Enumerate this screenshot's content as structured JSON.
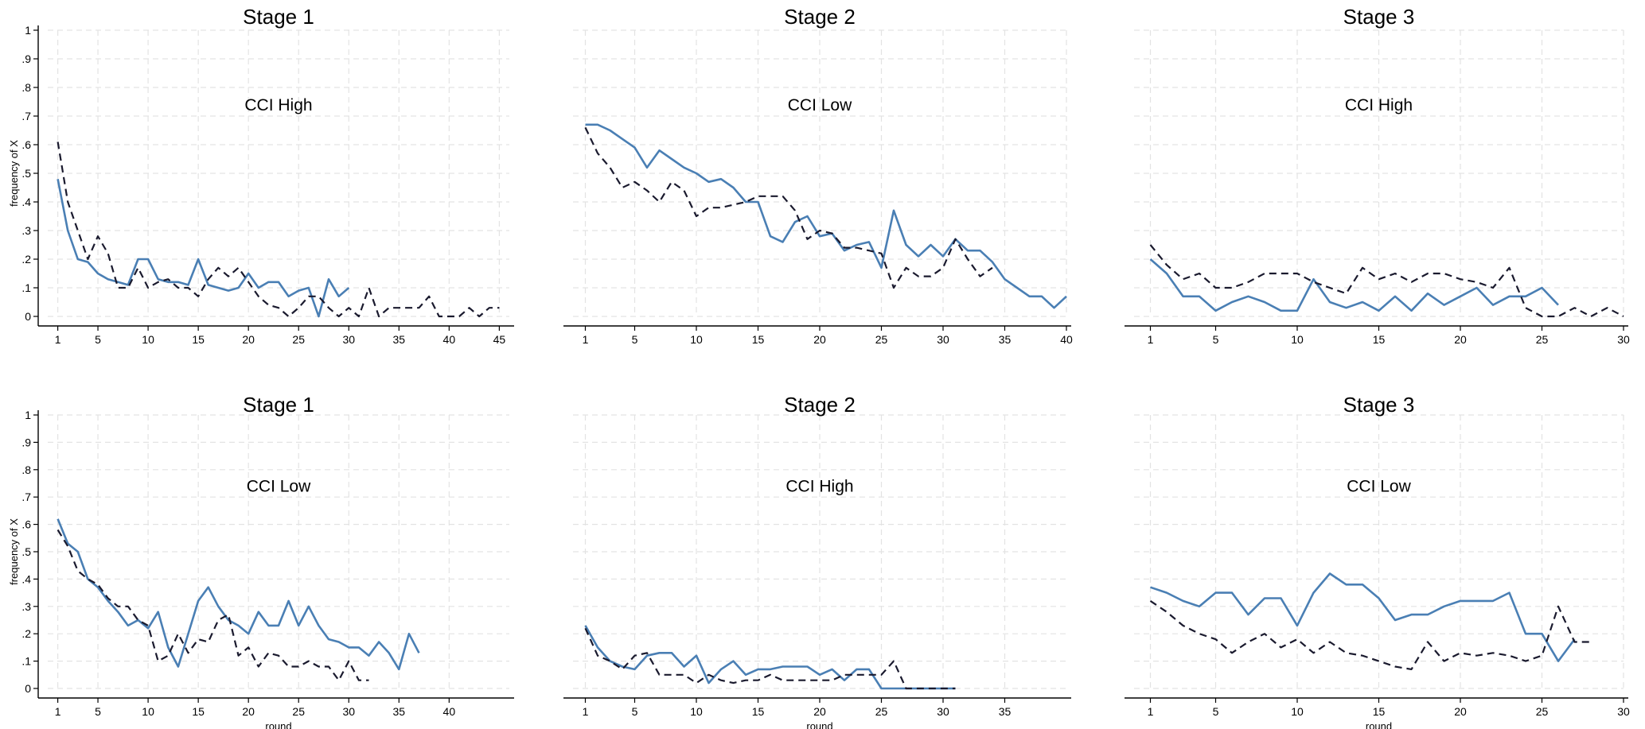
{
  "colors": {
    "solid_series": "#4a7fb4",
    "dashed_series": "#1a1a2e",
    "grid": "#e3e3e3"
  },
  "chart_data": [
    {
      "type": "line",
      "title": "Stage 1",
      "annotation": "CCI High",
      "xlabel": "",
      "ylabel": "frequency of X",
      "xlim": [
        0,
        46
      ],
      "ylim": [
        0,
        1
      ],
      "xticks": [
        "1",
        "5",
        "10",
        "15",
        "20",
        "25",
        "30",
        "35",
        "40",
        "45"
      ],
      "yticks": [
        "0",
        ".1",
        ".2",
        ".3",
        ".4",
        ".5",
        ".6",
        ".7",
        ".8",
        ".9",
        "1"
      ],
      "grid": true,
      "series": [
        {
          "style": "solid",
          "x": [
            1,
            2,
            3,
            4,
            5,
            6,
            7,
            8,
            9,
            10,
            11,
            12,
            13,
            14,
            15,
            16,
            17,
            18,
            19,
            20,
            21,
            22,
            23,
            24,
            25,
            26,
            27,
            28,
            29,
            30
          ],
          "y": [
            0.48,
            0.3,
            0.2,
            0.19,
            0.15,
            0.13,
            0.12,
            0.11,
            0.2,
            0.2,
            0.13,
            0.12,
            0.12,
            0.11,
            0.2,
            0.11,
            0.1,
            0.09,
            0.1,
            0.15,
            0.1,
            0.12,
            0.12,
            0.07,
            0.09,
            0.1,
            0.0,
            0.13,
            0.07,
            0.1
          ]
        },
        {
          "style": "dashed",
          "x": [
            1,
            2,
            3,
            4,
            5,
            6,
            7,
            8,
            9,
            10,
            11,
            12,
            13,
            14,
            15,
            16,
            17,
            18,
            19,
            20,
            21,
            22,
            23,
            24,
            25,
            26,
            27,
            28,
            29,
            30,
            31,
            32,
            33,
            34,
            35,
            36,
            37,
            38,
            39,
            40,
            41,
            42,
            43,
            44,
            45
          ],
          "y": [
            0.61,
            0.4,
            0.3,
            0.2,
            0.28,
            0.22,
            0.1,
            0.1,
            0.17,
            0.1,
            0.12,
            0.13,
            0.1,
            0.1,
            0.07,
            0.13,
            0.17,
            0.14,
            0.17,
            0.12,
            0.07,
            0.04,
            0.03,
            0.0,
            0.03,
            0.07,
            0.07,
            0.03,
            0.0,
            0.03,
            0.0,
            0.1,
            0.0,
            0.03,
            0.03,
            0.03,
            0.03,
            0.07,
            0.0,
            0.0,
            0.0,
            0.03,
            0.0,
            0.03,
            0.03
          ]
        }
      ]
    },
    {
      "type": "line",
      "title": "Stage 2",
      "annotation": "CCI Low",
      "xlabel": "",
      "ylabel": "",
      "xlim": [
        0,
        40
      ],
      "ylim": [
        0,
        1
      ],
      "xticks": [
        "1",
        "5",
        "10",
        "15",
        "20",
        "25",
        "30",
        "35",
        "40"
      ],
      "yticks": [],
      "grid": true,
      "series": [
        {
          "style": "solid",
          "x": [
            1,
            2,
            3,
            4,
            5,
            6,
            7,
            8,
            9,
            10,
            11,
            12,
            13,
            14,
            15,
            16,
            17,
            18,
            19,
            20,
            21,
            22,
            23,
            24,
            25,
            26,
            27,
            28,
            29,
            30,
            31,
            32,
            33,
            34,
            35,
            36,
            37,
            38,
            39,
            40
          ],
          "y": [
            0.67,
            0.67,
            0.65,
            0.62,
            0.59,
            0.52,
            0.58,
            0.55,
            0.52,
            0.5,
            0.47,
            0.48,
            0.45,
            0.4,
            0.4,
            0.28,
            0.26,
            0.33,
            0.35,
            0.28,
            0.29,
            0.23,
            0.25,
            0.26,
            0.17,
            0.37,
            0.25,
            0.21,
            0.25,
            0.21,
            0.27,
            0.23,
            0.23,
            0.19,
            0.13,
            0.1,
            0.07,
            0.07,
            0.03,
            0.07
          ]
        },
        {
          "style": "dashed",
          "x": [
            1,
            2,
            3,
            4,
            5,
            6,
            7,
            8,
            9,
            10,
            11,
            12,
            13,
            14,
            15,
            16,
            17,
            18,
            19,
            20,
            21,
            22,
            23,
            24,
            25,
            26,
            27,
            28,
            29,
            30,
            31,
            32,
            33,
            34
          ],
          "y": [
            0.66,
            0.57,
            0.52,
            0.45,
            0.47,
            0.44,
            0.4,
            0.47,
            0.44,
            0.35,
            0.38,
            0.38,
            0.39,
            0.4,
            0.42,
            0.42,
            0.42,
            0.37,
            0.27,
            0.3,
            0.29,
            0.24,
            0.24,
            0.23,
            0.22,
            0.1,
            0.17,
            0.14,
            0.14,
            0.17,
            0.27,
            0.2,
            0.14,
            0.17
          ]
        }
      ]
    },
    {
      "type": "line",
      "title": "Stage 3",
      "annotation": "CCI High",
      "xlabel": "",
      "ylabel": "",
      "xlim": [
        0,
        30
      ],
      "ylim": [
        0,
        1
      ],
      "xticks": [
        "1",
        "5",
        "10",
        "15",
        "20",
        "25",
        "30"
      ],
      "yticks": [],
      "grid": true,
      "series": [
        {
          "style": "solid",
          "x": [
            1,
            2,
            3,
            4,
            5,
            6,
            7,
            8,
            9,
            10,
            11,
            12,
            13,
            14,
            15,
            16,
            17,
            18,
            19,
            20,
            21,
            22,
            23,
            24,
            25,
            26
          ],
          "y": [
            0.2,
            0.15,
            0.07,
            0.07,
            0.02,
            0.05,
            0.07,
            0.05,
            0.02,
            0.02,
            0.13,
            0.05,
            0.03,
            0.05,
            0.02,
            0.07,
            0.02,
            0.08,
            0.04,
            0.07,
            0.1,
            0.04,
            0.07,
            0.07,
            0.1,
            0.04
          ]
        },
        {
          "style": "dashed",
          "x": [
            1,
            2,
            3,
            4,
            5,
            6,
            7,
            8,
            9,
            10,
            11,
            12,
            13,
            14,
            15,
            16,
            17,
            18,
            19,
            20,
            21,
            22,
            23,
            24,
            25,
            26,
            27,
            28,
            29,
            30
          ],
          "y": [
            0.25,
            0.18,
            0.13,
            0.15,
            0.1,
            0.1,
            0.12,
            0.15,
            0.15,
            0.15,
            0.12,
            0.1,
            0.08,
            0.17,
            0.13,
            0.15,
            0.12,
            0.15,
            0.15,
            0.13,
            0.12,
            0.1,
            0.17,
            0.03,
            0.0,
            0.0,
            0.03,
            0.0,
            0.03,
            0.0
          ]
        }
      ]
    },
    {
      "type": "line",
      "title": "Stage 1",
      "annotation": "CCI Low",
      "xlabel": "round",
      "ylabel": "frequency of X",
      "xlim": [
        0,
        46
      ],
      "ylim": [
        0,
        1
      ],
      "xticks": [
        "1",
        "5",
        "10",
        "15",
        "20",
        "25",
        "30",
        "35",
        "40"
      ],
      "yticks": [
        "0",
        ".1",
        ".2",
        ".3",
        ".4",
        ".5",
        ".6",
        ".7",
        ".8",
        ".9",
        "1"
      ],
      "grid": true,
      "series": [
        {
          "style": "solid",
          "x": [
            1,
            2,
            3,
            4,
            5,
            6,
            7,
            8,
            9,
            10,
            11,
            12,
            13,
            14,
            15,
            16,
            17,
            18,
            19,
            20,
            21,
            22,
            23,
            24,
            25,
            26,
            27,
            28,
            29,
            30,
            31,
            32,
            33,
            34,
            35,
            36,
            37
          ],
          "y": [
            0.62,
            0.53,
            0.5,
            0.4,
            0.37,
            0.32,
            0.28,
            0.23,
            0.25,
            0.22,
            0.28,
            0.15,
            0.08,
            0.2,
            0.32,
            0.37,
            0.3,
            0.25,
            0.23,
            0.2,
            0.28,
            0.23,
            0.23,
            0.32,
            0.23,
            0.3,
            0.23,
            0.18,
            0.17,
            0.15,
            0.15,
            0.12,
            0.17,
            0.13,
            0.07,
            0.2,
            0.13
          ]
        },
        {
          "style": "dashed",
          "x": [
            1,
            2,
            3,
            4,
            5,
            6,
            7,
            8,
            9,
            10,
            11,
            12,
            13,
            14,
            15,
            16,
            17,
            18,
            19,
            20,
            21,
            22,
            23,
            24,
            25,
            26,
            27,
            28,
            29,
            30,
            31,
            32
          ],
          "y": [
            0.58,
            0.52,
            0.43,
            0.4,
            0.38,
            0.33,
            0.3,
            0.3,
            0.25,
            0.23,
            0.1,
            0.12,
            0.2,
            0.13,
            0.18,
            0.17,
            0.25,
            0.27,
            0.12,
            0.15,
            0.08,
            0.13,
            0.12,
            0.08,
            0.08,
            0.1,
            0.08,
            0.08,
            0.03,
            0.1,
            0.03,
            0.03
          ]
        }
      ]
    },
    {
      "type": "line",
      "title": "Stage 2",
      "annotation": "CCI High",
      "xlabel": "round",
      "ylabel": "",
      "xlim": [
        0,
        40
      ],
      "ylim": [
        0,
        1
      ],
      "xticks": [
        "1",
        "5",
        "10",
        "15",
        "20",
        "25",
        "30",
        "35"
      ],
      "yticks": [],
      "grid": true,
      "series": [
        {
          "style": "solid",
          "x": [
            1,
            2,
            3,
            4,
            5,
            6,
            7,
            8,
            9,
            10,
            11,
            12,
            13,
            14,
            15,
            16,
            17,
            18,
            19,
            20,
            21,
            22,
            23,
            24,
            25,
            26,
            27,
            28,
            29,
            30,
            31
          ],
          "y": [
            0.23,
            0.15,
            0.1,
            0.08,
            0.07,
            0.12,
            0.13,
            0.13,
            0.08,
            0.12,
            0.02,
            0.07,
            0.1,
            0.05,
            0.07,
            0.07,
            0.08,
            0.08,
            0.08,
            0.05,
            0.07,
            0.03,
            0.07,
            0.07,
            0.0,
            0.0,
            0.0,
            0.0,
            0.0,
            0.0,
            0.0
          ]
        },
        {
          "style": "dashed",
          "x": [
            1,
            2,
            3,
            4,
            5,
            6,
            7,
            8,
            9,
            10,
            11,
            12,
            13,
            14,
            15,
            16,
            17,
            18,
            19,
            20,
            21,
            22,
            23,
            24,
            25,
            26,
            27,
            28,
            29,
            30,
            31
          ],
          "y": [
            0.22,
            0.12,
            0.1,
            0.07,
            0.12,
            0.13,
            0.05,
            0.05,
            0.05,
            0.02,
            0.05,
            0.03,
            0.02,
            0.03,
            0.03,
            0.05,
            0.03,
            0.03,
            0.03,
            0.03,
            0.03,
            0.05,
            0.05,
            0.05,
            0.05,
            0.1,
            0.0,
            0.0,
            0.0,
            0.0,
            0.0
          ]
        }
      ]
    },
    {
      "type": "line",
      "title": "Stage 3",
      "annotation": "CCI Low",
      "xlabel": "round",
      "ylabel": "",
      "xlim": [
        0,
        30
      ],
      "ylim": [
        0,
        1
      ],
      "xticks": [
        "1",
        "5",
        "10",
        "15",
        "20",
        "25",
        "30"
      ],
      "yticks": [],
      "grid": true,
      "series": [
        {
          "style": "solid",
          "x": [
            1,
            2,
            3,
            4,
            5,
            6,
            7,
            8,
            9,
            10,
            11,
            12,
            13,
            14,
            15,
            16,
            17,
            18,
            19,
            20,
            21,
            22,
            23,
            24,
            25,
            26,
            27
          ],
          "y": [
            0.37,
            0.35,
            0.32,
            0.3,
            0.35,
            0.35,
            0.27,
            0.33,
            0.33,
            0.23,
            0.35,
            0.42,
            0.38,
            0.38,
            0.33,
            0.25,
            0.27,
            0.27,
            0.3,
            0.32,
            0.32,
            0.32,
            0.35,
            0.2,
            0.2,
            0.1,
            0.18
          ]
        },
        {
          "style": "dashed",
          "x": [
            1,
            2,
            3,
            4,
            5,
            6,
            7,
            8,
            9,
            10,
            11,
            12,
            13,
            14,
            15,
            16,
            17,
            18,
            19,
            20,
            21,
            22,
            23,
            24,
            25,
            26,
            27,
            28
          ],
          "y": [
            0.32,
            0.28,
            0.23,
            0.2,
            0.18,
            0.13,
            0.17,
            0.2,
            0.15,
            0.18,
            0.13,
            0.17,
            0.13,
            0.12,
            0.1,
            0.08,
            0.07,
            0.17,
            0.1,
            0.13,
            0.12,
            0.13,
            0.12,
            0.1,
            0.12,
            0.3,
            0.17,
            0.17
          ]
        }
      ]
    }
  ]
}
